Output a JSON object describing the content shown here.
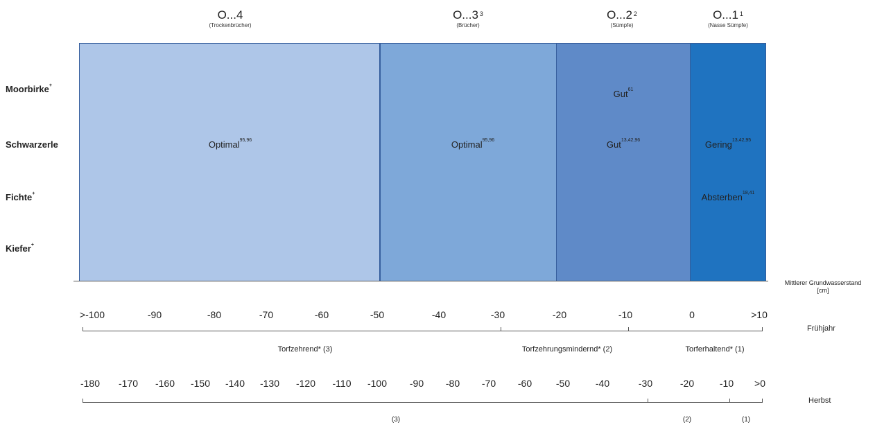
{
  "zones": [
    {
      "label": "O...4",
      "sup": "",
      "sub": "(Trockenbrücher)"
    },
    {
      "label": "O...3",
      "sup": "3",
      "sub": "(Brücher)"
    },
    {
      "label": "O...2",
      "sup": "2",
      "sub": "(Sümpfe)"
    },
    {
      "label": "O...1",
      "sup": "1",
      "sub": "(Nasse Sümpfe)"
    }
  ],
  "species": [
    {
      "name": "Moorbirke",
      "sup": "+"
    },
    {
      "name": "Schwarzerle",
      "sup": ""
    },
    {
      "name": "Fichte",
      "sup": "+"
    },
    {
      "name": "Kiefer",
      "sup": "+"
    }
  ],
  "cells": {
    "b1_schwarzerle": {
      "text": "Optimal",
      "sup": "95,96"
    },
    "b2_schwarzerle": {
      "text": "Optimal",
      "sup": "95,96"
    },
    "b3_moorbirke": {
      "text": "Gut",
      "sup": "61"
    },
    "b3_schwarzerle": {
      "text": "Gut",
      "sup": "13,42,96"
    },
    "b4_schwarzerle": {
      "text": "Gering",
      "sup": "13,42,95"
    },
    "b4_fichte": {
      "text": "Absterben",
      "sup": "18,41"
    }
  },
  "axis_label_line1": "Mittlerer Grundwasserstand",
  "axis_label_line2": "[cm]",
  "spring": {
    "label": "Frühjahr",
    "ticks": [
      ">-100",
      "-90",
      "-80",
      "-70",
      "-60",
      "-50",
      "-40",
      "-30",
      "-20",
      "-10",
      "0",
      ">10"
    ],
    "notes": [
      "Torfzehrend* (3)",
      "Torfzehrungsmindernd* (2)",
      "Torferhaltend* (1)"
    ]
  },
  "autumn": {
    "label": "Herbst",
    "ticks": [
      "-180",
      "-170",
      "-160",
      "-150",
      "-140",
      "-130",
      "-120",
      "-110",
      "-100",
      "-90",
      "-80",
      "-70",
      "-60",
      "-50",
      "-40",
      "-30",
      "-20",
      "-10",
      ">0"
    ],
    "notes": [
      "(3)",
      "(2)",
      "(1)"
    ]
  }
}
